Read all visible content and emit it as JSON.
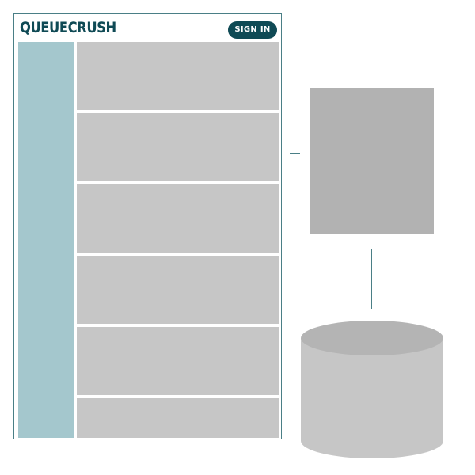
{
  "app": {
    "brand": "QUEUECRUSH",
    "signin_label": "SIGN IN"
  },
  "colors": {
    "brand_dark": "#0f4a55",
    "sidebar": "#a4c7cd",
    "card": "#c6c6c6",
    "server": "#b2b2b2",
    "database_top": "#b4b4b4",
    "database_body": "#c6c6c6",
    "connector": "#4a7f86"
  },
  "content": {
    "cards": [
      {
        "id": "card-1"
      },
      {
        "id": "card-2"
      },
      {
        "id": "card-3"
      },
      {
        "id": "card-4"
      },
      {
        "id": "card-5"
      },
      {
        "id": "card-6"
      }
    ]
  }
}
